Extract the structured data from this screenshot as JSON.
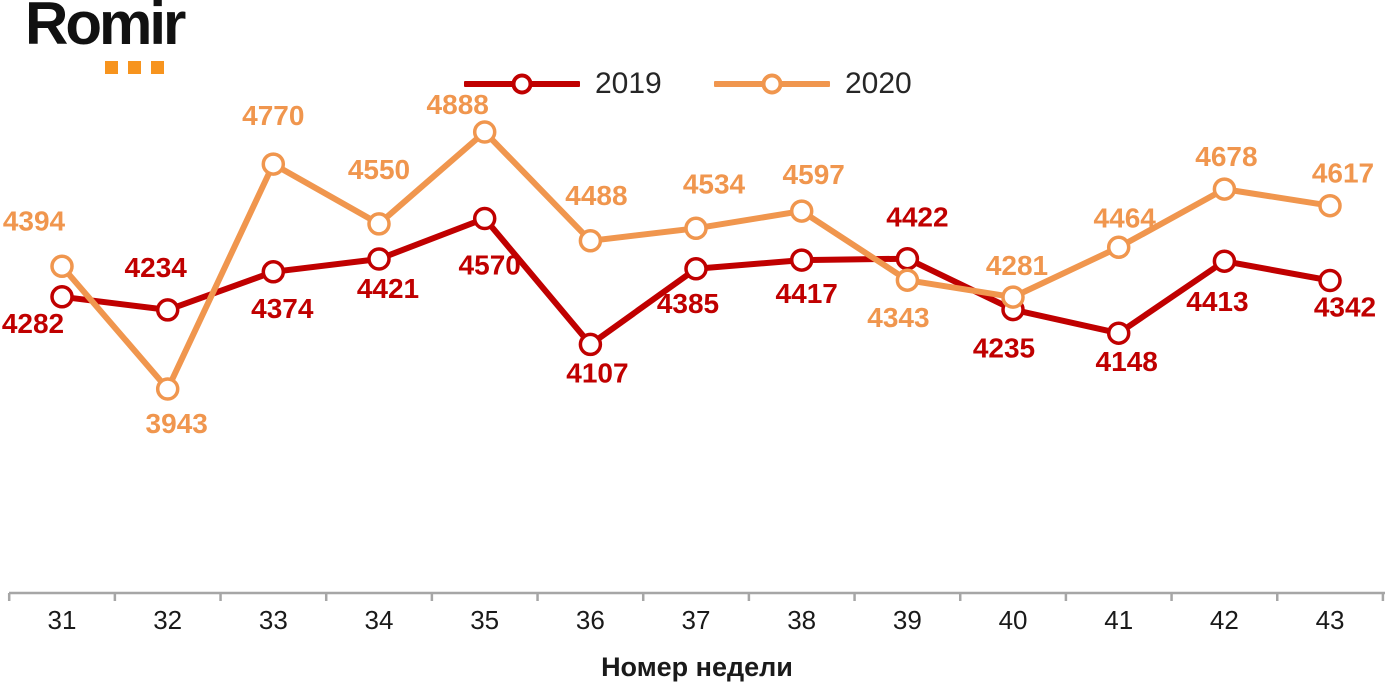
{
  "logo": {
    "text": "Romir",
    "dot_color": "#F7941E"
  },
  "chart_data": {
    "type": "line",
    "title": "",
    "xlabel": "Номер недели",
    "ylabel": "",
    "categories": [
      "31",
      "32",
      "33",
      "34",
      "35",
      "36",
      "37",
      "38",
      "39",
      "40",
      "41",
      "42",
      "43"
    ],
    "series": [
      {
        "name": "2019",
        "color": "#C00000",
        "values": [
          4282,
          4234,
          4374,
          4421,
          4570,
          4107,
          4385,
          4417,
          4422,
          4235,
          4148,
          4413,
          4342
        ],
        "label_offsets": [
          [
            -29,
            26
          ],
          [
            -12,
            -43
          ],
          [
            9,
            36
          ],
          [
            9,
            29
          ],
          [
            5,
            46
          ],
          [
            7,
            28
          ],
          [
            -8,
            34
          ],
          [
            5,
            33
          ],
          [
            10,
            -42
          ],
          [
            -9,
            38
          ],
          [
            8,
            28
          ],
          [
            -7,
            40
          ],
          [
            15,
            26
          ]
        ]
      },
      {
        "name": "2020",
        "color": "#F0964E",
        "values": [
          4394,
          3943,
          4770,
          4550,
          4888,
          4488,
          4534,
          4597,
          4343,
          4281,
          4464,
          4678,
          4617
        ],
        "label_offsets": [
          [
            -28,
            -46
          ],
          [
            9,
            34
          ],
          [
            0,
            -49
          ],
          [
            0,
            -55
          ],
          [
            -27,
            -28
          ],
          [
            6,
            -46
          ],
          [
            18,
            -45
          ],
          [
            12,
            -37
          ],
          [
            -9,
            37
          ],
          [
            4,
            -32
          ],
          [
            6,
            -30
          ],
          [
            2,
            -33
          ],
          [
            13,
            -33
          ]
        ]
      }
    ],
    "ylim": [
      3943,
      4888
    ],
    "grid": "off",
    "legend_position": "top",
    "axis_color": "#A6A6A6",
    "marker_style": "open-circle",
    "data_labels": "on"
  }
}
